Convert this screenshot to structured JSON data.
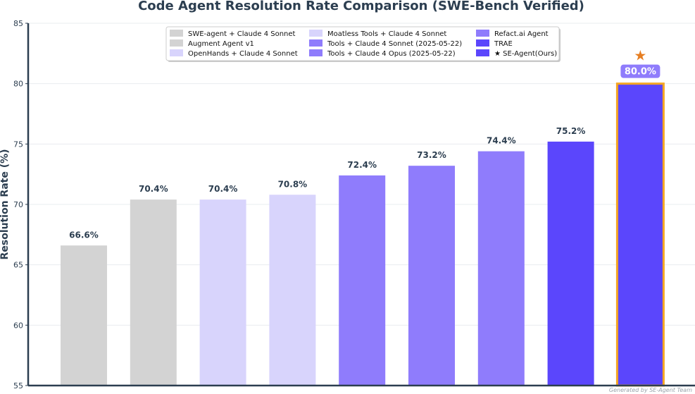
{
  "chart_data": {
    "type": "bar",
    "title": "Code Agent Resolution Rate Comparison (SWE-Bench Verified)",
    "xlabel": "",
    "ylabel": "Resolution Rate (%)",
    "ylim": [
      55,
      85
    ],
    "yticks": [
      55,
      60,
      65,
      70,
      75,
      80,
      85
    ],
    "grid": true,
    "legend_position": "top-center",
    "categories": [
      "SWE-agent + Claude 4 Sonnet",
      "Augment Agent v1",
      "OpenHands + Claude 4 Sonnet",
      "Moatless Tools + Claude 4 Sonnet",
      "Tools + Claude 4 Sonnet (2025-05-22)",
      "Tools + Claude 4 Opus (2025-05-22)",
      "Refact.ai Agent",
      "TRAE",
      "★ SE-Agent(Ours)"
    ],
    "values": [
      66.6,
      70.4,
      70.4,
      70.8,
      72.4,
      73.2,
      74.4,
      75.2,
      80.0
    ],
    "data_labels": [
      "66.6%",
      "70.4%",
      "70.4%",
      "70.8%",
      "72.4%",
      "73.2%",
      "74.4%",
      "75.2%",
      "80.0%"
    ],
    "colors": [
      "#d3d3d3",
      "#d3d3d3",
      "#d8d4fc",
      "#d8d4fc",
      "#8f7cfc",
      "#8f7cfc",
      "#8f7cfc",
      "#5b46fc",
      "#5b46fc"
    ],
    "highlight_index": 8,
    "highlight_border_color": "#f5a623",
    "highlight_label_bg": "#8f7cfc",
    "highlight_star_color": "#e67e22",
    "highlight_star_symbol": "★",
    "text_color": "#2c3e50"
  },
  "footer": "Generated by SE-Agent Team"
}
